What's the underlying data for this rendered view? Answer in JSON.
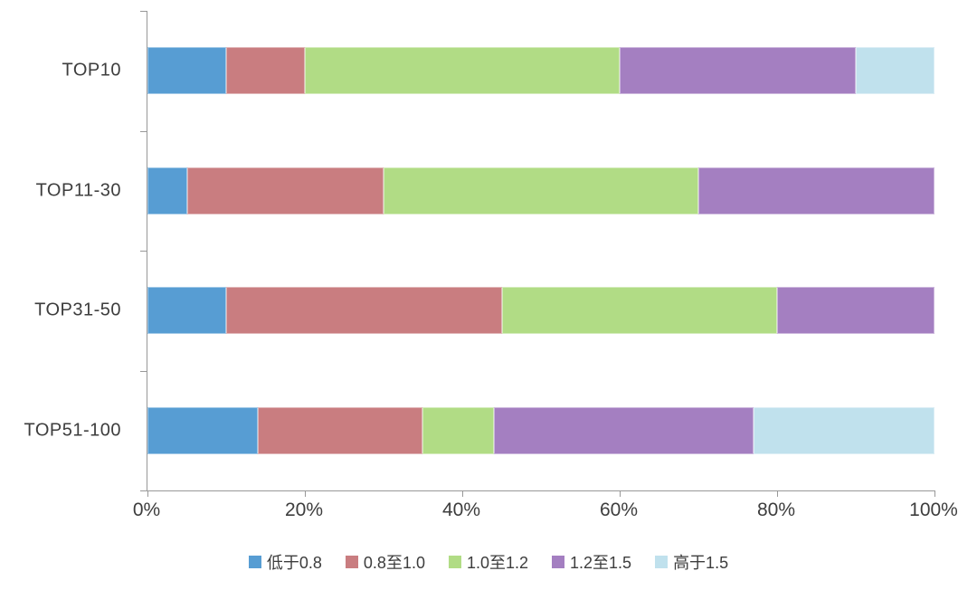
{
  "chart_data": {
    "type": "bar",
    "orientation": "horizontal",
    "stacked": true,
    "title": "",
    "categories": [
      "TOP10",
      "TOP11-30",
      "TOP31-50",
      "TOP51-100"
    ],
    "series": [
      {
        "name": "低于0.8",
        "color": "#579DD3",
        "values": [
          10,
          5,
          10,
          14
        ]
      },
      {
        "name": "0.8至1.0",
        "color": "#C97D80",
        "values": [
          10,
          25,
          35,
          21
        ]
      },
      {
        "name": "1.0至1.2",
        "color": "#B1DC85",
        "values": [
          40,
          40,
          35,
          9
        ]
      },
      {
        "name": "1.2至1.5",
        "color": "#A47FC1",
        "values": [
          30,
          30,
          20,
          33
        ]
      },
      {
        "name": "高于1.5",
        "color": "#C0E1ED",
        "values": [
          10,
          0,
          0,
          23
        ]
      }
    ],
    "x_ticks": [
      "0%",
      "20%",
      "40%",
      "60%",
      "80%",
      "100%"
    ],
    "xlim": [
      0,
      100
    ],
    "legend_position": "bottom",
    "grid": false,
    "axis_color": "#989898",
    "text_color": "#3D3D3D",
    "background": "#FFFFFF"
  }
}
